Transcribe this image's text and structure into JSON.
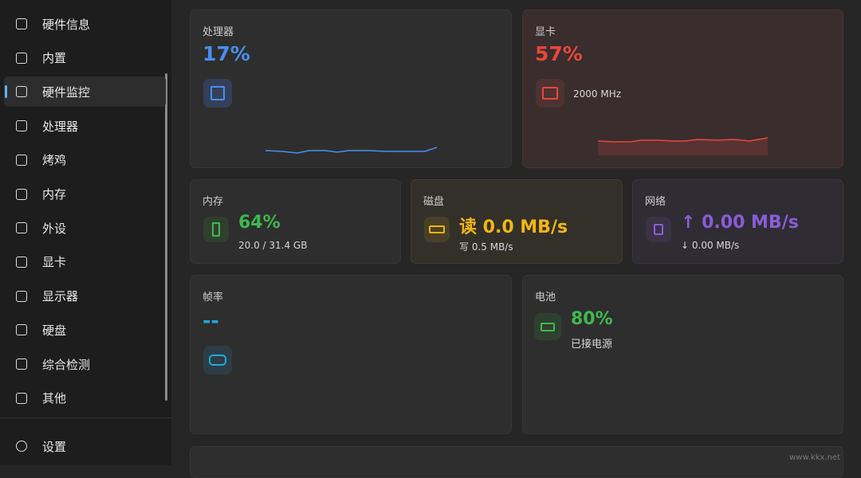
{
  "sidebar": {
    "items": [
      "硬件信息",
      "内置",
      "硬件监控",
      "处理器",
      "烤鸡",
      "内存",
      "外设",
      "显卡",
      "显示器",
      "硬盘",
      "综合检测",
      "其他"
    ],
    "selected": 2,
    "footer": "设置"
  },
  "cards": {
    "cpu": {
      "title": "处理器",
      "value": "17%"
    },
    "gpu": {
      "title": "显卡",
      "value": "57%",
      "detail": "2000 MHz"
    },
    "memory": {
      "title": "内存",
      "value": "64%",
      "detail": "20.0 / 31.4 GB"
    },
    "disk": {
      "title": "磁盘",
      "value": "读 0.0 MB/s",
      "detail": "写 0.5 MB/s"
    },
    "network": {
      "title": "网络",
      "value": "↑ 0.00 MB/s",
      "detail": "↓ 0.00 MB/s"
    },
    "fps": {
      "title": "帧率",
      "value": "--"
    },
    "battery": {
      "title": "电池",
      "value": "80%",
      "detail": "已接电源"
    }
  },
  "watermark": "www.kkx.net"
}
